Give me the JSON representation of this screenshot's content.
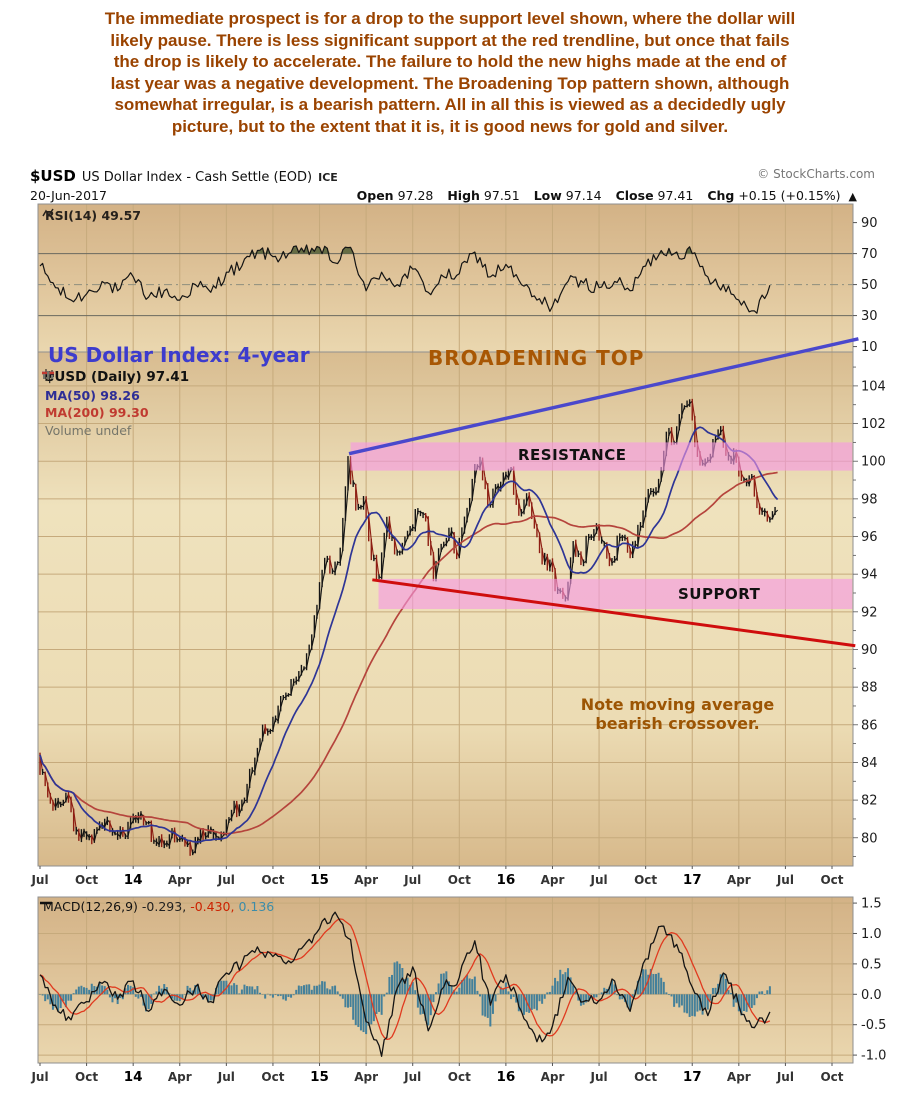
{
  "commentary": {
    "text": "The immediate prospect is for a drop to the support level shown, where the dollar will\nlikely pause. There is less significant support at the red trendline, but once that fails\nthe drop is likely to accelerate. The failure to hold the new highs made at the end of\nlast year was a negative development. The Broadening Top pattern shown, although\nsomewhat irregular, is a bearish pattern. All in all this is viewed as a decidedly ugly\npicture, but to the extent that it is, it is good news for gold and silver."
  },
  "header": {
    "symbol": "$USD",
    "name": "US Dollar Index - Cash Settle (EOD)",
    "exchange": "ICE",
    "copyright": "© StockCharts.com",
    "date": "20-Jun-2017",
    "open_label": "Open",
    "open_value": "97.28",
    "high_label": "High",
    "high_value": "97.51",
    "low_label": "Low",
    "low_value": "97.14",
    "close_label": "Close",
    "close_value": "97.41",
    "chg_label": "Chg",
    "chg_value": "+0.15 (+0.15%)",
    "chg_arrow": "▲"
  },
  "chart_data": {
    "type": "candlestick",
    "symbol": "$USD",
    "timeframe": "Daily, 4-year window Jul-2013 to Oct-2017",
    "titles": {
      "left": "US Dollar Index: 4-year",
      "right": "BROADENING TOP",
      "note": "Note moving average\nbearish crossover."
    },
    "x_ticks": [
      {
        "label": "Jul",
        "year": false
      },
      {
        "label": "Oct",
        "year": false
      },
      {
        "label": "14",
        "year": true
      },
      {
        "label": "Apr",
        "year": false
      },
      {
        "label": "Jul",
        "year": false
      },
      {
        "label": "Oct",
        "year": false
      },
      {
        "label": "15",
        "year": true
      },
      {
        "label": "Apr",
        "year": false
      },
      {
        "label": "Jul",
        "year": false
      },
      {
        "label": "Oct",
        "year": false
      },
      {
        "label": "16",
        "year": true
      },
      {
        "label": "Apr",
        "year": false
      },
      {
        "label": "Jul",
        "year": false
      },
      {
        "label": "Oct",
        "year": false
      },
      {
        "label": "17",
        "year": true
      },
      {
        "label": "Apr",
        "year": false
      },
      {
        "label": "Jul",
        "year": false
      },
      {
        "label": "Oct",
        "year": false
      }
    ],
    "panels": {
      "rsi": {
        "legend": "RSI(14) 49.57",
        "last": 49.57,
        "axis_range": [
          6.5,
          102
        ],
        "ticks": [
          90,
          70,
          50,
          30,
          10
        ],
        "gridlines": {
          "solid": [
            70,
            30
          ],
          "dashdot": [
            50
          ]
        },
        "series_monthly": [
          62,
          48,
          40,
          44,
          52,
          46,
          55,
          42,
          46,
          40,
          50,
          45,
          58,
          62,
          72,
          68,
          70,
          71,
          74,
          64,
          74,
          46,
          58,
          50,
          60,
          45,
          55,
          57,
          71,
          55,
          63,
          50,
          40,
          36,
          52,
          51,
          48,
          52,
          46,
          62,
          72,
          71,
          70,
          55,
          50,
          40,
          33,
          49.6
        ]
      },
      "price": {
        "legend_usd": "$USD (Daily) 97.41",
        "legend_ma50": "MA(50) 98.26",
        "legend_ma200": "MA(200) 99.30",
        "legend_volume": "Volume undef",
        "last": 97.41,
        "ma50_last": 98.26,
        "ma200_last": 99.3,
        "axis_range": [
          78.5,
          105.8
        ],
        "ticks": [
          104,
          102,
          100,
          98,
          96,
          94,
          92,
          90,
          88,
          86,
          84,
          82,
          80
        ],
        "series_semimonthly": [
          84.4,
          82.8,
          81.6,
          81.8,
          82.0,
          80.3,
          80.2,
          79.8,
          80.7,
          80.8,
          80.2,
          80.1,
          80.9,
          81.3,
          80.8,
          79.8,
          79.6,
          80.1,
          79.9,
          79.6,
          79.3,
          80.4,
          80.5,
          80.0,
          80.2,
          81.4,
          81.6,
          82.8,
          84.2,
          85.9,
          85.7,
          86.9,
          87.6,
          88.3,
          89.0,
          90.1,
          92.2,
          94.8,
          94.1,
          95.3,
          100.2,
          97.5,
          98.0,
          94.8,
          93.8,
          96.9,
          95.2,
          95.6,
          96.5,
          97.3,
          96.9,
          93.8,
          95.5,
          96.3,
          94.9,
          96.9,
          99.0,
          100.1,
          97.7,
          98.7,
          99.3,
          99.6,
          97.2,
          98.2,
          96.5,
          94.6,
          94.7,
          93.1,
          92.7,
          95.7,
          94.6,
          96.0,
          96.6,
          95.6,
          94.7,
          96.0,
          95.3,
          95.5,
          97.2,
          98.4,
          99.0,
          101.4,
          101.0,
          102.9,
          103.2,
          100.4,
          100.0,
          101.1,
          101.7,
          100.2,
          100.1,
          99.0,
          99.2,
          97.3,
          96.9,
          97.4
        ]
      },
      "macd": {
        "legend_name": "MACD(12,26,9)",
        "legend_v1": "-0.293,",
        "legend_v2": "-0.430,",
        "legend_v3": "0.136",
        "macd_last": -0.293,
        "signal_last": -0.43,
        "hist_last": 0.136,
        "axis_range": [
          -1.13,
          1.6
        ],
        "ticks": [
          1.5,
          1.0,
          0.5,
          0.0,
          -0.5,
          -1.0
        ],
        "series_monthly": [
          0.32,
          -0.18,
          -0.42,
          -0.12,
          0.18,
          -0.08,
          0.22,
          -0.28,
          0.08,
          -0.18,
          0.12,
          -0.12,
          0.35,
          0.5,
          0.78,
          0.62,
          0.55,
          0.8,
          1.08,
          1.35,
          0.9,
          -0.45,
          -1.02,
          0.1,
          0.45,
          -0.6,
          0.12,
          0.28,
          0.88,
          -0.18,
          0.32,
          -0.28,
          -0.78,
          -0.52,
          0.28,
          -0.12,
          -0.1,
          0.22,
          -0.28,
          0.58,
          1.12,
          0.82,
          0.12,
          -0.35,
          0.35,
          -0.18,
          -0.55,
          -0.29
        ]
      }
    },
    "annotations": {
      "resistance_zone": {
        "label": "RESISTANCE",
        "m0": 20.0,
        "price_low": 99.5,
        "price_high": 101.0
      },
      "support_zone": {
        "label": "SUPPORT",
        "m0": 21.8,
        "price_low": 92.15,
        "price_high": 93.75
      },
      "blue_trendline": {
        "m0": 19.9,
        "p0": 100.4,
        "m1": 52.7,
        "p1": 106.5
      },
      "red_trendline": {
        "m0": 21.4,
        "p0": 93.7,
        "m1": 52.5,
        "p1": 90.2
      }
    },
    "colors": {
      "grid": "#c6aa7c",
      "panel_border": "#8f8f8f",
      "candle_up": "#141414",
      "candle_down": "#8d1d12",
      "ma50": "#2e3596",
      "ma200": "#b5443c",
      "rsi_line": "#141414",
      "rsi_overbought_fill": "#59643c",
      "hist": "#44809a",
      "signal": "#e03a1f",
      "macd_line": "#141414",
      "band": "#f698e4",
      "trend_blue": "#4a48cc",
      "trend_red": "#cf0d0d",
      "commentary_text": "#9a4300",
      "title_blue": "#3d3ccd",
      "title_brown": "#a85704",
      "note_brown": "#9c5504"
    }
  }
}
